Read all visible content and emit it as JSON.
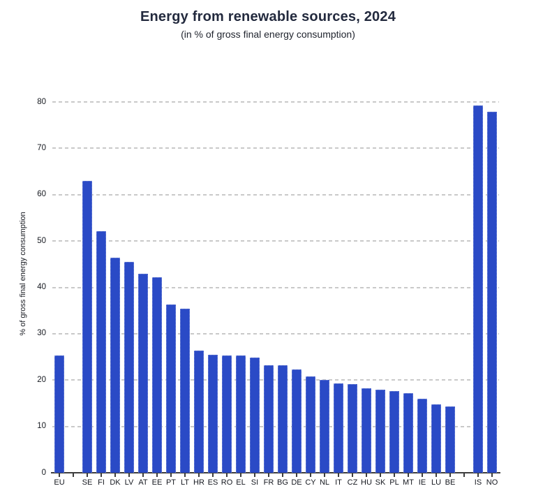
{
  "chart_data": {
    "type": "bar",
    "title": "Energy from renewable sources, 2024",
    "subtitle": "(in % of gross final energy consumption)",
    "xlabel": "",
    "ylabel": "% of gross final energy consumption",
    "ylim": [
      0,
      80
    ],
    "yticks": [
      0,
      10,
      20,
      30,
      40,
      50,
      60,
      70,
      80
    ],
    "grid": "horizontal-dashed",
    "legend": "none",
    "bar_color": "#2a4ac6",
    "bar_edge_color": "#7c8fd9",
    "categories": [
      "EU",
      "",
      "SE",
      "FI",
      "DK",
      "LV",
      "AT",
      "EE",
      "PT",
      "LT",
      "HR",
      "ES",
      "RO",
      "EL",
      "SI",
      "FR",
      "BG",
      "DE",
      "CY",
      "NL",
      "IT",
      "CZ",
      "HU",
      "SK",
      "PL",
      "MT",
      "IE",
      "LU",
      "BE",
      "",
      "IS",
      "NO"
    ],
    "values": [
      25.3,
      null,
      63.0,
      52.2,
      46.4,
      45.5,
      42.9,
      42.2,
      36.3,
      35.4,
      26.4,
      25.4,
      25.3,
      25.3,
      24.9,
      23.2,
      23.2,
      22.3,
      20.8,
      20.0,
      19.3,
      19.2,
      18.2,
      18.0,
      17.7,
      17.2,
      16.0,
      14.7,
      14.3,
      null,
      79.3,
      77.9
    ]
  },
  "colors": {
    "background": "#ffffff",
    "title_text": "#232a3e",
    "axis_text": "#15181f",
    "gridline": "#c9c9c9",
    "axis_line": "#3d3d3d",
    "bar": "#2a4ac6"
  }
}
